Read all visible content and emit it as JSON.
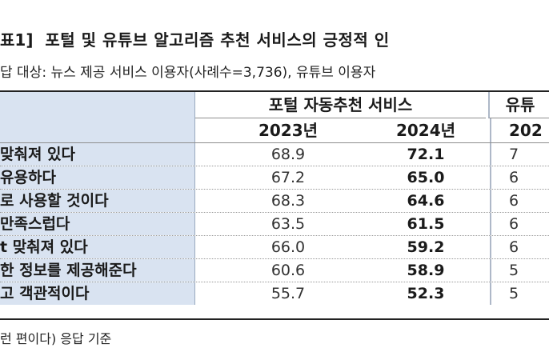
{
  "title": {
    "tag": "표1]",
    "text": "포털 및 유튜브 알고리즘 추천 서비스의 긍정적 인"
  },
  "subtitle": "답 대상: 뉴스 제공 서비스 이용자(사례수=3,736), 유튜브 이용자",
  "table": {
    "group_a": "포털 자동추천 서비스",
    "group_b": "유튜",
    "year_a1": "2023년",
    "year_a2": "2024년",
    "year_b1": "202",
    "rows": [
      {
        "label": "맞춰져 있다",
        "v2023": "68.9",
        "v2024": "72.1",
        "vb": "7"
      },
      {
        "label": "유용하다",
        "v2023": "67.2",
        "v2024": "65.0",
        "vb": "6"
      },
      {
        "label": "로 사용할 것이다",
        "v2023": "68.3",
        "v2024": "64.6",
        "vb": "6"
      },
      {
        "label": "만족스럽다",
        "v2023": "63.5",
        "v2024": "61.5",
        "vb": "6"
      },
      {
        "label": "t 맞춰져 있다",
        "v2023": "66.0",
        "v2024": "59.2",
        "vb": "6"
      },
      {
        "label": "한 정보를 제공해준다",
        "v2023": "60.6",
        "v2024": "58.9",
        "vb": "5"
      },
      {
        "label": "고 객관적이다",
        "v2023": "55.7",
        "v2024": "52.3",
        "vb": "5"
      }
    ]
  },
  "note": "런 편이다) 응답 기준"
}
